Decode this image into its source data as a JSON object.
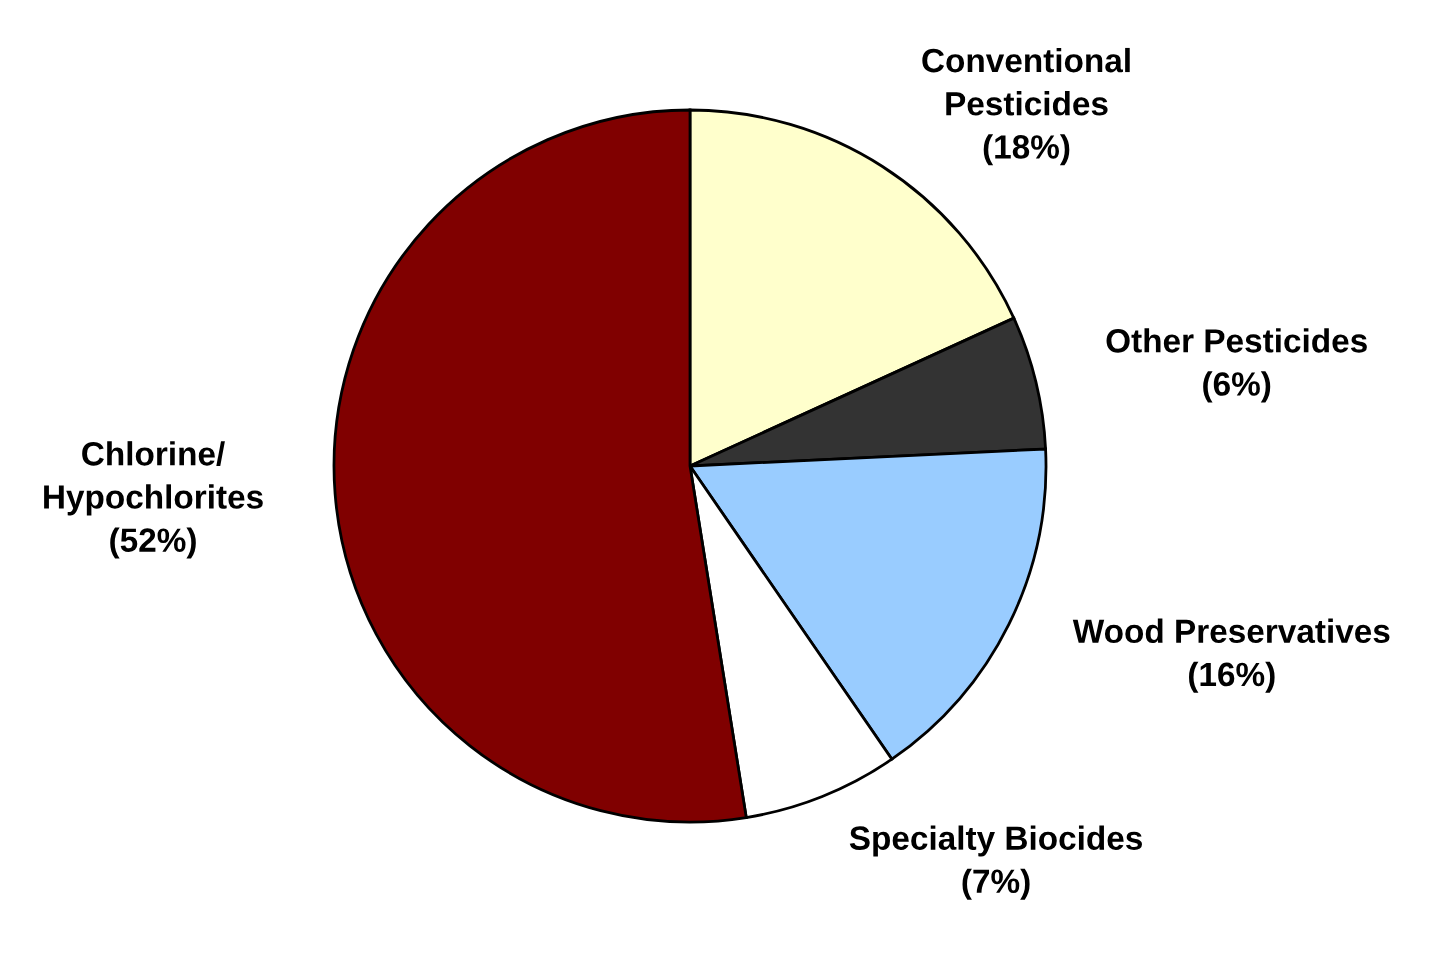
{
  "chart_data": {
    "type": "pie",
    "categories": [
      "Conventional\nPesticides",
      "Other Pesticides",
      "Wood Preservatives",
      "Specialty Biocides",
      "Chlorine/\nHypochlorites"
    ],
    "values": [
      18,
      6,
      16,
      7,
      52
    ],
    "value_labels": [
      "(18%)",
      "(6%)",
      "(16%)",
      "(7%)",
      "(52%)"
    ],
    "colors": [
      "#ffffcc",
      "#333333",
      "#99ccff",
      "#ffffff",
      "#800000"
    ]
  }
}
